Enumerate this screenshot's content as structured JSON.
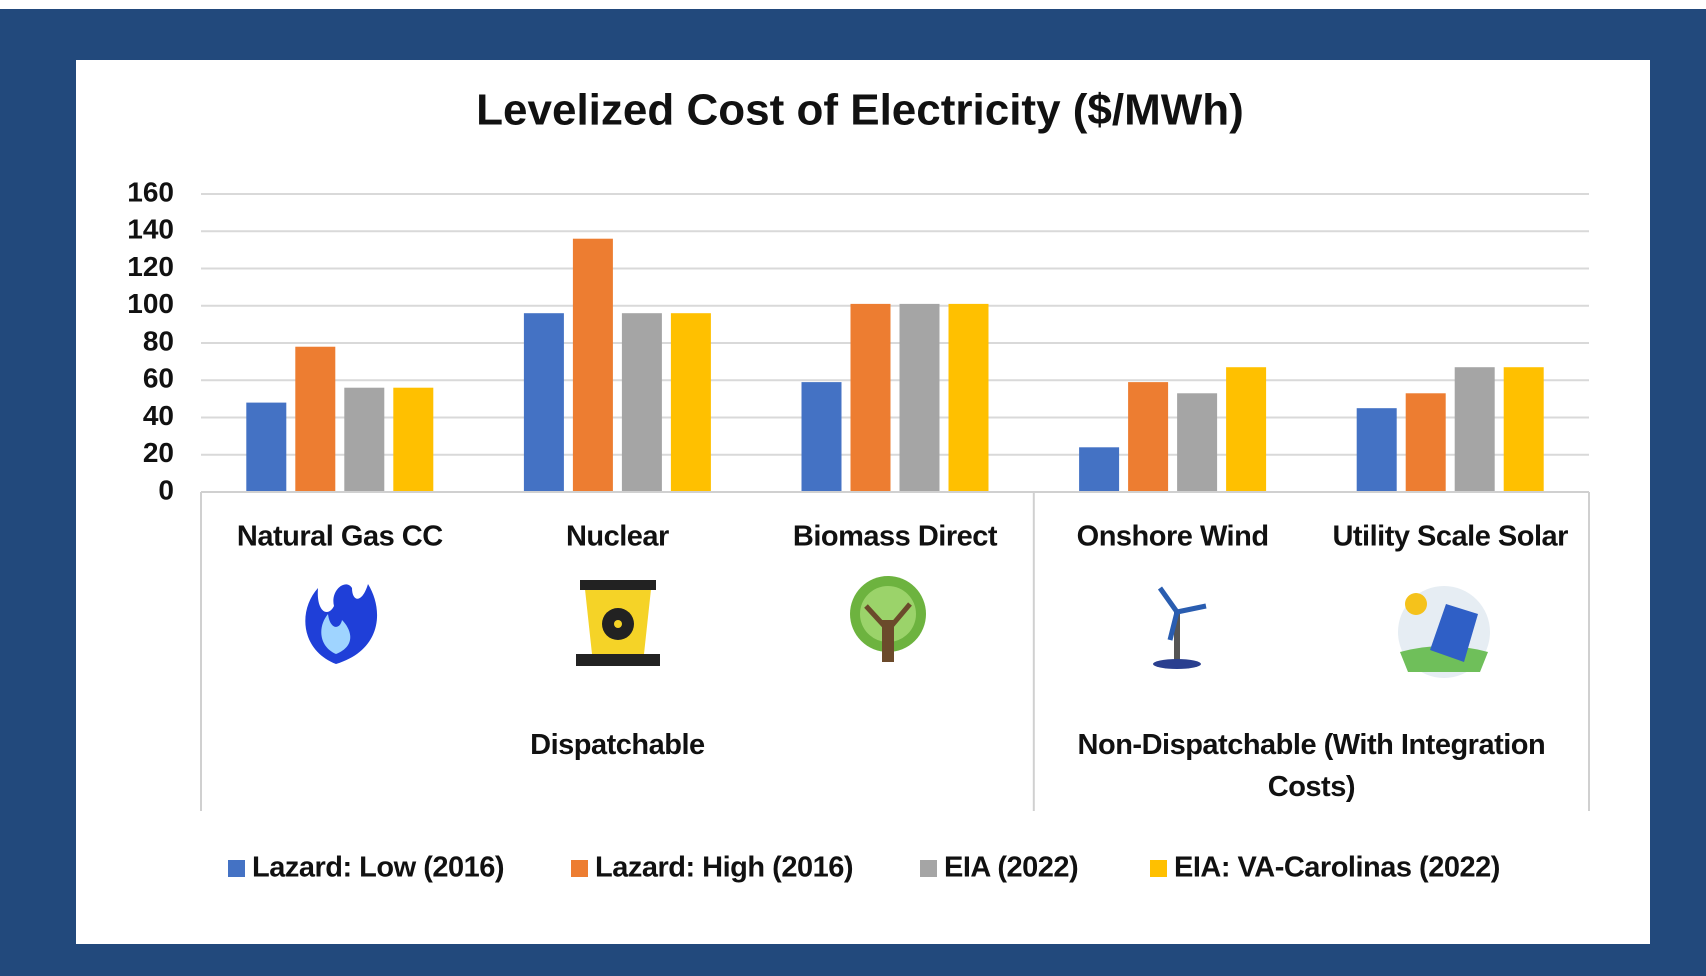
{
  "chart_data": {
    "type": "bar",
    "title": "Levelized Cost of Electricity ($/MWh)",
    "categories": [
      "Natural Gas CC",
      "Nuclear",
      "Biomass Direct",
      "Onshore Wind",
      "Utility Scale Solar"
    ],
    "groups": [
      {
        "label": "Dispatchable",
        "members": [
          "Natural Gas CC",
          "Nuclear",
          "Biomass Direct"
        ]
      },
      {
        "label": "Non-Dispatchable (With Integration Costs)",
        "members": [
          "Onshore Wind",
          "Utility Scale Solar"
        ]
      }
    ],
    "series": [
      {
        "name": "Lazard: Low (2016)",
        "color": "#4472c4",
        "values": [
          48,
          96,
          59,
          24,
          45
        ]
      },
      {
        "name": "Lazard: High (2016)",
        "color": "#ed7d31",
        "values": [
          78,
          136,
          101,
          59,
          53
        ]
      },
      {
        "name": "EIA (2022)",
        "color": "#a5a5a5",
        "values": [
          56,
          96,
          101,
          53,
          67
        ]
      },
      {
        "name": "EIA: VA-Carolinas (2022)",
        "color": "#ffc000",
        "values": [
          56,
          96,
          101,
          67,
          67
        ]
      }
    ],
    "ylim": [
      0,
      160
    ],
    "yticks": [
      0,
      20,
      40,
      60,
      80,
      100,
      120,
      140,
      160
    ],
    "grid": true,
    "legend": "bottom"
  }
}
